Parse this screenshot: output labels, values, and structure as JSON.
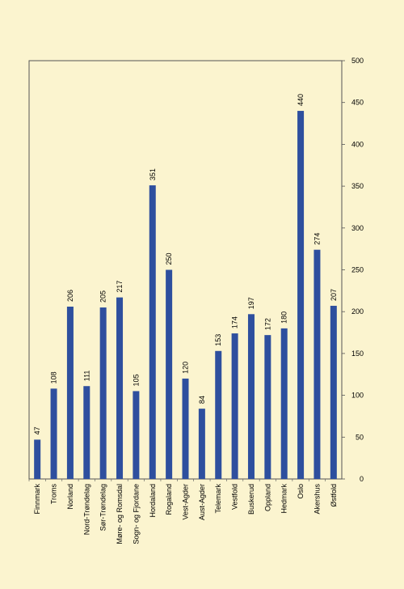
{
  "colors": {
    "background": "#fbf4cf",
    "plot_background": "#fbf4cf",
    "bar": "#2e4f9e",
    "axis": "#555555"
  },
  "chart_data": {
    "type": "bar",
    "orientation": "vertical",
    "title": "",
    "xlabel": "",
    "ylabel": "",
    "y_axis_position": "right",
    "ylim": [
      0,
      500
    ],
    "y_ticks": [
      0,
      50,
      100,
      150,
      200,
      250,
      300,
      350,
      400,
      450,
      500
    ],
    "grid": false,
    "legend": "none",
    "category_label_rotation": -90,
    "value_label_rotation": -90,
    "categories": [
      "Finnmark",
      "Troms",
      "Norland",
      "Nord-Trøndelag",
      "Sør-Trøndelag",
      "Møre- og Romsdal",
      "Sogn- og Fjordane",
      "Hordaland",
      "Rogaland",
      "Vest-Agder",
      "Aust-Agder",
      "Telemark",
      "Vestfold",
      "Buskerud",
      "Oppland",
      "Hedmark",
      "Oslo",
      "Akershus",
      "Østfold"
    ],
    "values": [
      47,
      108,
      206,
      111,
      205,
      217,
      105,
      351,
      250,
      120,
      84,
      153,
      174,
      197,
      172,
      180,
      440,
      274,
      207
    ],
    "data_labels": [
      "47",
      "108",
      "206",
      "111",
      "205",
      "217",
      "105",
      "351",
      "250",
      "120",
      "84",
      "153",
      "174",
      "197",
      "172",
      "180",
      "440",
      "274",
      "207"
    ]
  }
}
